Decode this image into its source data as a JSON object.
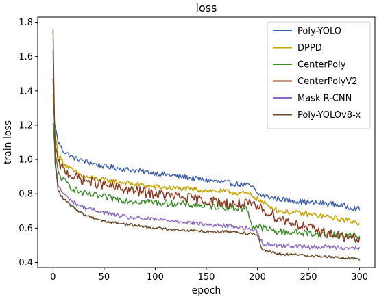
{
  "chart_data": {
    "type": "line",
    "title": "loss",
    "xlabel": "epoch",
    "ylabel": "train loss",
    "xlim": [
      -15,
      315
    ],
    "ylim": [
      0.37,
      1.83
    ],
    "xticks": [
      0,
      50,
      100,
      150,
      200,
      250,
      300
    ],
    "yticks": [
      0.4,
      0.6,
      0.8,
      1.0,
      1.2,
      1.4,
      1.6,
      1.8
    ],
    "xtick_labels": [
      "0",
      "50",
      "100",
      "150",
      "200",
      "250",
      "300"
    ],
    "ytick_labels": [
      "0.4",
      "0.6",
      "0.8",
      "1.0",
      "1.2",
      "1.4",
      "1.6",
      "1.8"
    ],
    "grid": false,
    "legend_position": "top-right",
    "x": [
      0,
      2,
      5,
      10,
      20,
      30,
      50,
      75,
      100,
      125,
      150,
      175,
      190,
      195,
      200,
      205,
      220,
      250,
      275,
      300
    ],
    "series": [
      {
        "name": "Poly-YOLO",
        "color": "#3d5fae",
        "noise": 0.015,
        "values": [
          1.21,
          1.2,
          1.1,
          1.05,
          1.01,
          0.99,
          0.96,
          0.94,
          0.92,
          0.9,
          0.88,
          0.86,
          0.85,
          0.84,
          0.8,
          0.79,
          0.77,
          0.75,
          0.74,
          0.71
        ]
      },
      {
        "name": "DPPD",
        "color": "#c9a200",
        "noise": 0.015,
        "values": [
          1.38,
          1.15,
          1.03,
          0.98,
          0.93,
          0.9,
          0.88,
          0.86,
          0.84,
          0.83,
          0.82,
          0.81,
          0.8,
          0.79,
          0.77,
          0.75,
          0.7,
          0.68,
          0.66,
          0.63
        ]
      },
      {
        "name": "CenterPoly",
        "color": "#3f8b2b",
        "noise": 0.02,
        "values": [
          1.21,
          1.05,
          0.92,
          0.88,
          0.83,
          0.8,
          0.78,
          0.76,
          0.75,
          0.74,
          0.73,
          0.72,
          0.71,
          0.61,
          0.61,
          0.6,
          0.58,
          0.57,
          0.56,
          0.55
        ]
      },
      {
        "name": "CenterPolyV2",
        "color": "#8b3a22",
        "noise": 0.03,
        "values": [
          1.47,
          1.1,
          0.98,
          0.94,
          0.9,
          0.88,
          0.85,
          0.82,
          0.8,
          0.78,
          0.76,
          0.74,
          0.74,
          0.73,
          0.72,
          0.71,
          0.66,
          0.6,
          0.56,
          0.53
        ]
      },
      {
        "name": "Mask R-CNN",
        "color": "#8a6cc4",
        "noise": 0.012,
        "values": [
          1.64,
          1.0,
          0.85,
          0.8,
          0.75,
          0.72,
          0.69,
          0.66,
          0.65,
          0.64,
          0.62,
          0.61,
          0.6,
          0.59,
          0.58,
          0.51,
          0.5,
          0.49,
          0.49,
          0.48
        ]
      },
      {
        "name": "Poly-YOLOv8-x",
        "color": "#6b4a2b",
        "noise": 0.008,
        "values": [
          1.76,
          0.98,
          0.82,
          0.77,
          0.72,
          0.68,
          0.64,
          0.62,
          0.6,
          0.59,
          0.58,
          0.58,
          0.57,
          0.57,
          0.56,
          0.47,
          0.45,
          0.44,
          0.43,
          0.42
        ]
      }
    ]
  }
}
